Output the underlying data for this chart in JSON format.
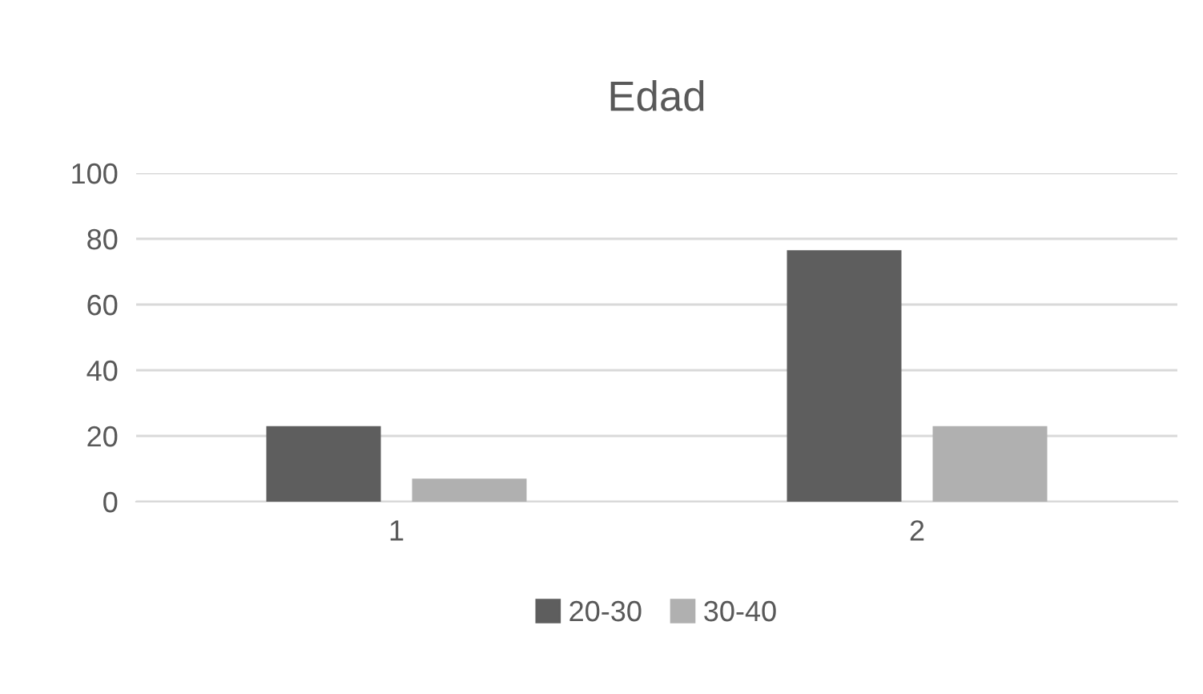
{
  "chart_data": {
    "type": "bar",
    "title": "Edad",
    "categories": [
      "1",
      "2"
    ],
    "series": [
      {
        "name": "20-30",
        "color": "#5e5e5e",
        "values": [
          23,
          76.5
        ]
      },
      {
        "name": "30-40",
        "color": "#b0b0b0",
        "values": [
          7,
          23
        ]
      }
    ],
    "ylim": [
      0,
      100
    ],
    "yticks": [
      0,
      20,
      40,
      60,
      80,
      100
    ],
    "grid": "y",
    "legend": "bottom"
  }
}
